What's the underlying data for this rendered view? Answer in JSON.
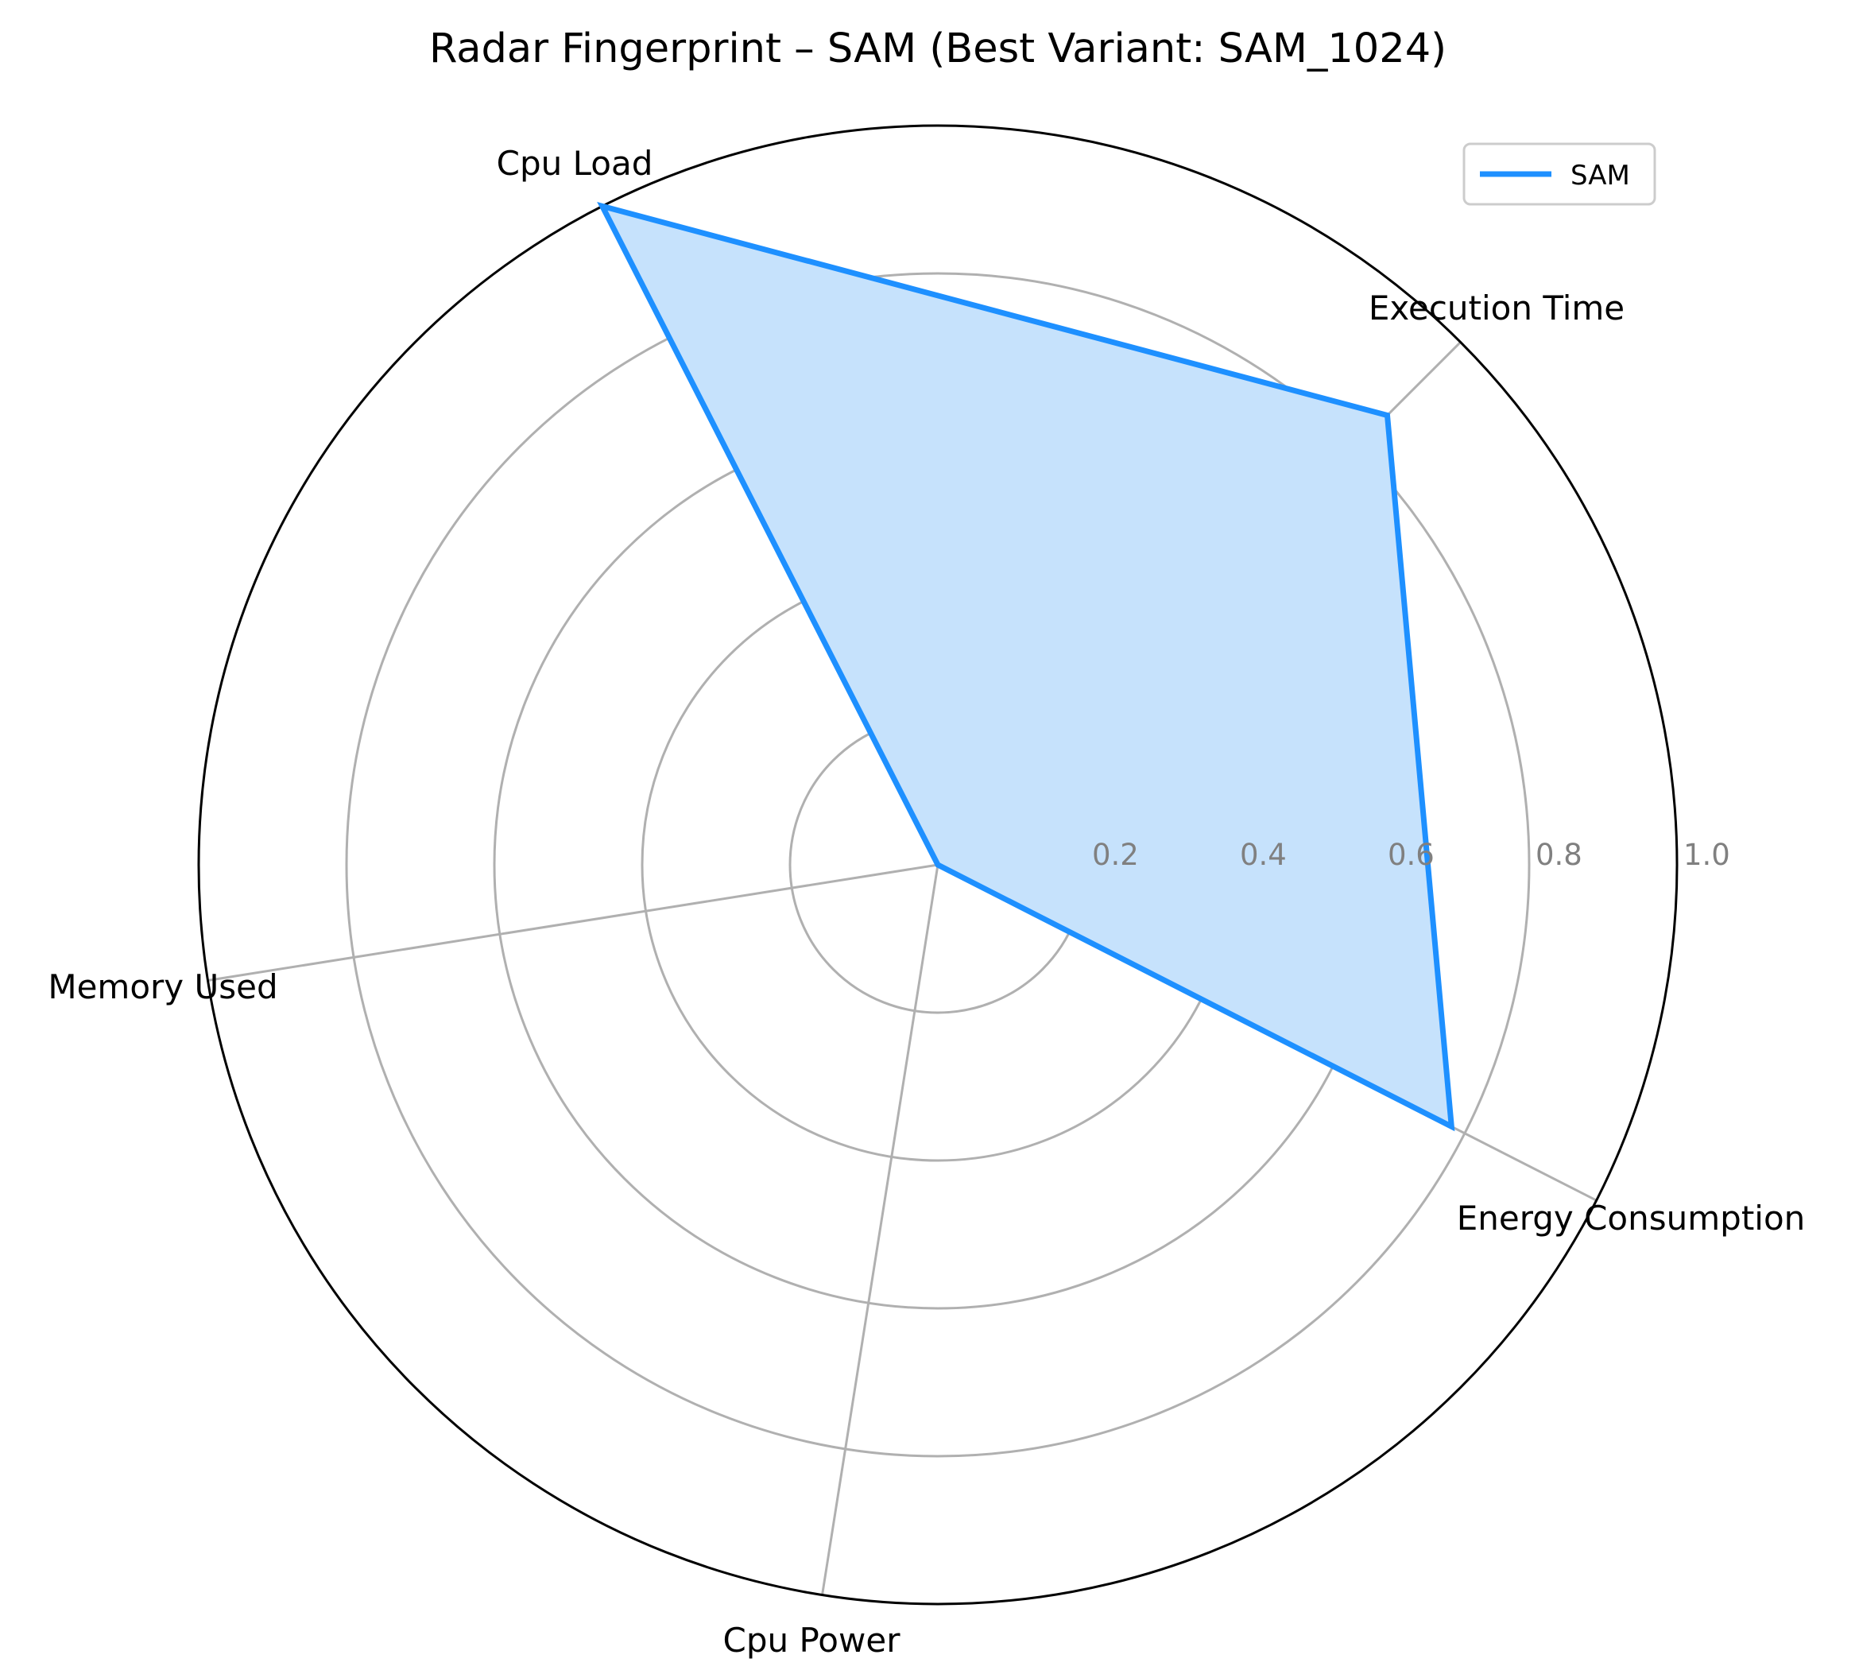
{
  "chart_data": {
    "type": "radar",
    "title": "Radar Fingerprint – SAM (Best Variant: SAM_1024)",
    "axes": [
      "Execution Time",
      "Cpu Load",
      "Memory Used",
      "Cpu Power",
      "Energy Consumption"
    ],
    "rticks": [
      0.2,
      0.4,
      0.6,
      0.8,
      1.0
    ],
    "rtick_labels": [
      "0.2",
      "0.4",
      "0.6",
      "0.8",
      "1.0"
    ],
    "rlim": [
      0,
      1.0
    ],
    "grid": true,
    "legend": {
      "position": "top-right",
      "entries": [
        "SAM"
      ]
    },
    "series": [
      {
        "name": "SAM",
        "values": [
          0.86,
          1.0,
          0.0,
          0.0,
          0.78
        ],
        "color": "#1e90ff",
        "fill": "#c6e2fc"
      }
    ]
  }
}
